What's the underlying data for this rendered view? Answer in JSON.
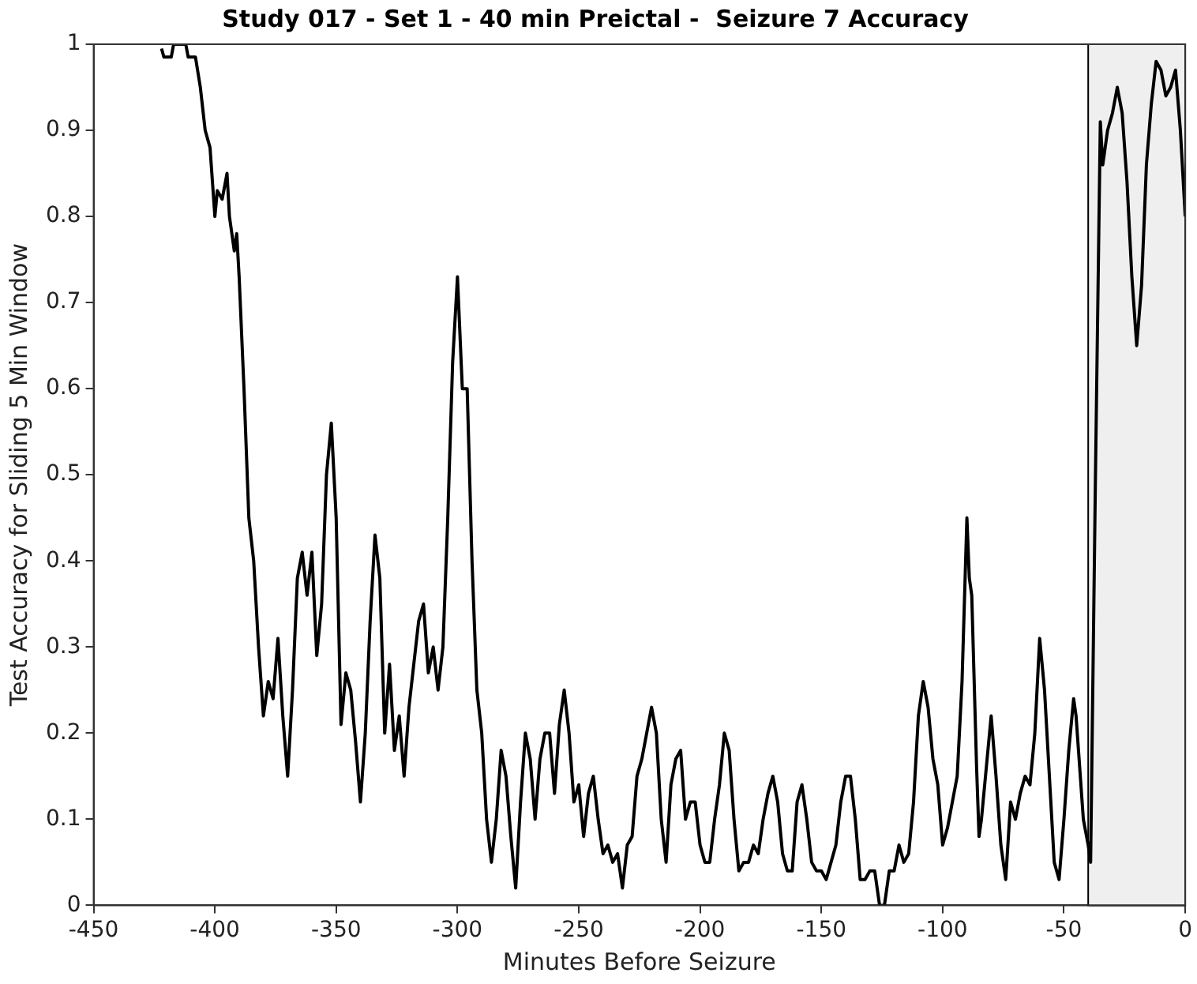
{
  "chart_data": {
    "type": "line",
    "title": "Study 017 - Set 1 - 40 min Preictal -  Seizure 7 Accuracy",
    "xlabel": "Minutes Before Seizure",
    "ylabel": "Test Accuracy for Sliding 5 Min Window",
    "x": [
      -422,
      -421,
      -418,
      -417,
      -412,
      -411,
      -408,
      -406,
      -404,
      -402,
      -400,
      -399,
      -397,
      -395,
      -394,
      -392,
      -391,
      -390,
      -388,
      -386,
      -384,
      -382,
      -380,
      -378,
      -376,
      -374,
      -372,
      -370,
      -368,
      -366,
      -364,
      -362,
      -360,
      -358,
      -356,
      -354,
      -352,
      -350,
      -348,
      -346,
      -344,
      -342,
      -340,
      -338,
      -336,
      -334,
      -332,
      -330,
      -328,
      -326,
      -324,
      -322,
      -320,
      -318,
      -316,
      -314,
      -312,
      -310,
      -308,
      -306,
      -304,
      -302,
      -300,
      -298,
      -296,
      -294,
      -292,
      -290,
      -288,
      -286,
      -284,
      -282,
      -280,
      -278,
      -276,
      -274,
      -272,
      -270,
      -268,
      -266,
      -264,
      -262,
      -260,
      -258,
      -256,
      -254,
      -252,
      -250,
      -248,
      -246,
      -244,
      -242,
      -240,
      -238,
      -236,
      -234,
      -232,
      -230,
      -228,
      -226,
      -224,
      -222,
      -220,
      -218,
      -216,
      -214,
      -212,
      -210,
      -208,
      -206,
      -204,
      -202,
      -200,
      -198,
      -196,
      -194,
      -192,
      -190,
      -188,
      -186,
      -184,
      -182,
      -180,
      -178,
      -176,
      -174,
      -172,
      -170,
      -168,
      -166,
      -164,
      -162,
      -160,
      -158,
      -156,
      -154,
      -152,
      -150,
      -148,
      -146,
      -144,
      -142,
      -140,
      -138,
      -136,
      -134,
      -132,
      -130,
      -128,
      -126,
      -124,
      -122,
      -120,
      -118,
      -116,
      -114,
      -112,
      -110,
      -108,
      -106,
      -104,
      -102,
      -100,
      -98,
      -96,
      -94,
      -92,
      -90,
      -89,
      -88,
      -86,
      -85,
      -84,
      -82,
      -80,
      -78,
      -76,
      -74,
      -72,
      -70,
      -68,
      -66,
      -64,
      -62,
      -60,
      -58,
      -56,
      -54,
      -52,
      -50,
      -48,
      -46,
      -45,
      -44,
      -42,
      -40,
      -39,
      -37,
      -35,
      -34,
      -32,
      -30,
      -28,
      -26,
      -24,
      -22,
      -20,
      -18,
      -16,
      -14,
      -12,
      -10,
      -8,
      -6,
      -4,
      -2,
      0
    ],
    "series": [
      {
        "color": "#000000",
        "values": [
          0.995,
          0.985,
          0.985,
          1.0,
          1.0,
          0.985,
          0.985,
          0.95,
          0.9,
          0.88,
          0.8,
          0.83,
          0.82,
          0.85,
          0.8,
          0.76,
          0.78,
          0.73,
          0.6,
          0.45,
          0.4,
          0.3,
          0.22,
          0.26,
          0.24,
          0.31,
          0.22,
          0.15,
          0.25,
          0.38,
          0.41,
          0.36,
          0.41,
          0.29,
          0.35,
          0.5,
          0.56,
          0.45,
          0.21,
          0.27,
          0.25,
          0.19,
          0.12,
          0.2,
          0.33,
          0.43,
          0.38,
          0.2,
          0.28,
          0.18,
          0.22,
          0.15,
          0.23,
          0.28,
          0.33,
          0.35,
          0.27,
          0.3,
          0.25,
          0.3,
          0.45,
          0.63,
          0.73,
          0.6,
          0.6,
          0.4,
          0.25,
          0.2,
          0.1,
          0.05,
          0.1,
          0.18,
          0.15,
          0.08,
          0.02,
          0.12,
          0.2,
          0.17,
          0.1,
          0.17,
          0.2,
          0.2,
          0.13,
          0.21,
          0.25,
          0.2,
          0.12,
          0.14,
          0.08,
          0.13,
          0.15,
          0.1,
          0.06,
          0.07,
          0.05,
          0.06,
          0.02,
          0.07,
          0.08,
          0.15,
          0.17,
          0.2,
          0.23,
          0.2,
          0.1,
          0.05,
          0.14,
          0.17,
          0.18,
          0.1,
          0.12,
          0.12,
          0.07,
          0.05,
          0.05,
          0.1,
          0.14,
          0.2,
          0.18,
          0.1,
          0.04,
          0.05,
          0.05,
          0.07,
          0.06,
          0.1,
          0.13,
          0.15,
          0.12,
          0.06,
          0.04,
          0.04,
          0.12,
          0.14,
          0.1,
          0.05,
          0.04,
          0.04,
          0.03,
          0.05,
          0.07,
          0.12,
          0.15,
          0.15,
          0.1,
          0.03,
          0.03,
          0.04,
          0.04,
          0.0,
          0.0,
          0.04,
          0.04,
          0.07,
          0.05,
          0.06,
          0.12,
          0.22,
          0.26,
          0.23,
          0.17,
          0.14,
          0.07,
          0.09,
          0.12,
          0.15,
          0.26,
          0.45,
          0.38,
          0.36,
          0.16,
          0.08,
          0.1,
          0.16,
          0.22,
          0.15,
          0.07,
          0.03,
          0.12,
          0.1,
          0.13,
          0.15,
          0.14,
          0.2,
          0.31,
          0.25,
          0.15,
          0.05,
          0.03,
          0.1,
          0.18,
          0.24,
          0.22,
          0.18,
          0.1,
          0.07,
          0.05,
          0.5,
          0.91,
          0.86,
          0.9,
          0.92,
          0.95,
          0.92,
          0.84,
          0.73,
          0.65,
          0.72,
          0.86,
          0.93,
          0.98,
          0.97,
          0.94,
          0.95,
          0.97,
          0.9,
          0.8
        ]
      }
    ],
    "xlim": [
      -450,
      0
    ],
    "xticks": [
      -450,
      -400,
      -350,
      -300,
      -250,
      -200,
      -150,
      -100,
      -50,
      0
    ],
    "ylim": [
      0,
      1
    ],
    "yticks": [
      0,
      0.1,
      0.2,
      0.3,
      0.4,
      0.5,
      0.6,
      0.7,
      0.8,
      0.9,
      1
    ],
    "bands": [
      {
        "axis": "x",
        "from": -40,
        "to": 0,
        "color": "#efefef"
      }
    ],
    "grid": false,
    "legend": false,
    "marker": "none",
    "line_style": "solid"
  }
}
